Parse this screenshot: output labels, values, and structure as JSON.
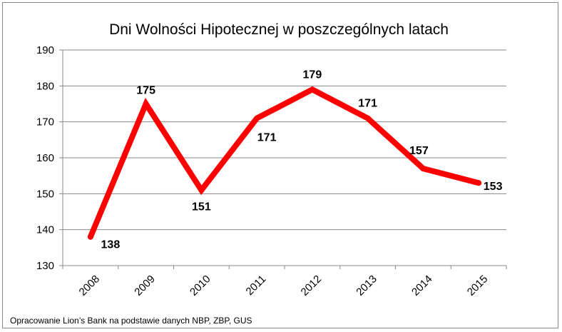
{
  "chart_data": {
    "type": "line",
    "title": "Dni Wolności Hipotecznej w poszczególnych latach",
    "xlabel": "",
    "ylabel": "",
    "categories": [
      "2008",
      "2009",
      "2010",
      "2011",
      "2012",
      "2013",
      "2014",
      "2015"
    ],
    "series": [
      {
        "values": [
          138,
          175,
          151,
          171,
          179,
          171,
          157,
          153
        ],
        "color": "#ff0000"
      }
    ],
    "ylim": [
      130,
      190
    ],
    "yticks": [
      "130",
      "140",
      "150",
      "160",
      "170",
      "180",
      "190"
    ],
    "data_labels": [
      "138",
      "175",
      "151",
      "171",
      "179",
      "171",
      "157",
      "153"
    ],
    "grid": "horizontal",
    "legend": "none",
    "colors": {
      "line": "#ff0000",
      "grid": "#888888"
    }
  },
  "footer": {
    "source": "Opracowanie Lion’s Bank na podstawie danych NBP, ZBP, GUS"
  }
}
